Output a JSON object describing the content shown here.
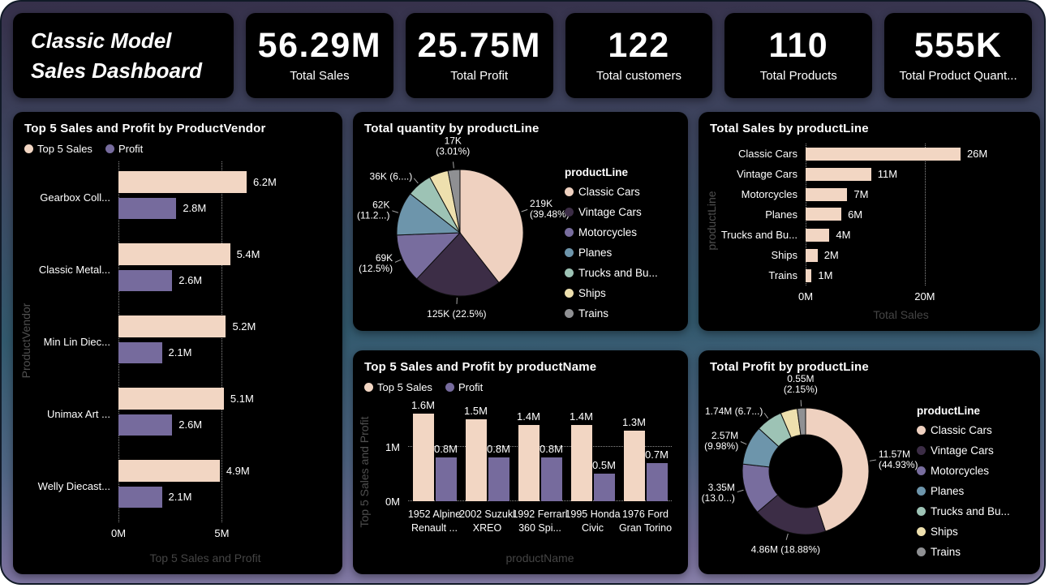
{
  "title_card": {
    "line1": "Classic Model",
    "line2": "Sales Dashboard"
  },
  "kpis": [
    {
      "value": "56.29M",
      "label": "Total Sales"
    },
    {
      "value": "25.75M",
      "label": "Total Profit"
    },
    {
      "value": "122",
      "label": "Total customers"
    },
    {
      "value": "110",
      "label": "Total Products"
    },
    {
      "value": "555K",
      "label": "Total Product Quant..."
    }
  ],
  "palette": {
    "Classic Cars": "#efd1c0",
    "Vintage Cars": "#3c2d46",
    "Motorcycles": "#786d9e",
    "Planes": "#6d95ab",
    "Trucks and Bu...": "#9dc3b5",
    "Ships": "#eee0ae",
    "Trains": "#8f9093",
    "sales": "#f2d6c3",
    "profit": "#766b9d"
  },
  "chart_data": [
    {
      "id": "vendor",
      "type": "bar",
      "orientation": "horizontal",
      "title": "Top 5 Sales and Profit by ProductVendor",
      "xlabel": "Top 5 Sales and Profit",
      "ylabel": "ProductVendor",
      "categories": [
        "Gearbox Coll...",
        "Classic Metal...",
        "Min Lin Diec...",
        "Unimax Art ...",
        "Welly Diecast..."
      ],
      "series": [
        {
          "name": "Top 5 Sales",
          "color_key": "sales",
          "values": [
            6.2,
            5.4,
            5.2,
            5.1,
            4.9
          ],
          "labels": [
            "6.2M",
            "5.4M",
            "5.2M",
            "5.1M",
            "4.9M"
          ]
        },
        {
          "name": "Profit",
          "color_key": "profit",
          "values": [
            2.8,
            2.6,
            2.1,
            2.6,
            2.1
          ],
          "labels": [
            "2.8M",
            "2.6M",
            "2.1M",
            "2.6M",
            "2.1M"
          ]
        }
      ],
      "x_ticks": [
        {
          "v": 0,
          "label": "0M"
        },
        {
          "v": 5,
          "label": "5M"
        }
      ],
      "xmax": 8.4,
      "grid": "dotted-vertical",
      "legend_position": "top"
    },
    {
      "id": "quantity",
      "type": "pie",
      "title": "Total quantity by productLine",
      "legend_title": "productLine",
      "legend_position": "right",
      "total": "555K",
      "slices": [
        {
          "name": "Classic Cars",
          "value": 219,
          "label": "219K\n(39.48%)"
        },
        {
          "name": "Vintage Cars",
          "value": 125,
          "label": "125K (22.5%)"
        },
        {
          "name": "Motorcycles",
          "value": 69,
          "label": "69K\n(12.5%)"
        },
        {
          "name": "Planes",
          "value": 62,
          "label": "62K\n(11.2...)"
        },
        {
          "name": "Trucks and Bu...",
          "value": 36,
          "label": "36K (6....)"
        },
        {
          "name": "Ships",
          "value": 27,
          "label": ""
        },
        {
          "name": "Trains",
          "value": 17,
          "label": "17K\n(3.01%)"
        }
      ]
    },
    {
      "id": "product",
      "type": "bar",
      "orientation": "vertical",
      "title": "Top 5 Sales and Profit by productName",
      "xlabel": "productName",
      "ylabel": "Top 5 Sales and Profit",
      "categories": [
        "1952 Alpine Renault ...",
        "2002 Suzuki XREO",
        "1992 Ferrari 360 Spi...",
        "1995 Honda Civic",
        "1976 Ford Gran Torino"
      ],
      "series": [
        {
          "name": "Top 5 Sales",
          "color_key": "sales",
          "values": [
            1.6,
            1.5,
            1.4,
            1.4,
            1.3
          ],
          "labels": [
            "1.6M",
            "1.5M",
            "1.4M",
            "1.4M",
            "1.3M"
          ]
        },
        {
          "name": "Profit",
          "color_key": "profit",
          "values": [
            0.8,
            0.8,
            0.8,
            0.5,
            0.7
          ],
          "labels": [
            "0.8M",
            "0.8M",
            "0.8M",
            "0.5M",
            "0.7M"
          ]
        }
      ],
      "y_ticks": [
        {
          "v": 0,
          "label": "0M"
        },
        {
          "v": 1,
          "label": "1M"
        }
      ],
      "ymax": 1.8,
      "grid": "dotted-horizontal",
      "legend_position": "top"
    },
    {
      "id": "sales",
      "type": "bar",
      "orientation": "horizontal",
      "title": "Total Sales by productLine",
      "xlabel": "Total Sales",
      "ylabel": "productLine",
      "categories": [
        "Classic Cars",
        "Vintage Cars",
        "Motorcycles",
        "Planes",
        "Trucks and Bu...",
        "Ships",
        "Trains"
      ],
      "series": [
        {
          "name": "Total Sales",
          "color_key": "sales",
          "values": [
            26,
            11,
            7,
            6,
            4,
            2,
            1
          ],
          "labels": [
            "26M",
            "11M",
            "7M",
            "6M",
            "4M",
            "2M",
            "1M"
          ]
        }
      ],
      "x_ticks": [
        {
          "v": 0,
          "label": "0M"
        },
        {
          "v": 20,
          "label": "20M"
        }
      ],
      "xmax": 32,
      "grid": "dotted-vertical"
    },
    {
      "id": "profit",
      "type": "donut",
      "title": "Total Profit by productLine",
      "legend_title": "productLine",
      "legend_position": "right",
      "total": "25.75M",
      "slices": [
        {
          "name": "Classic Cars",
          "value": 11.57,
          "label": "11.57M\n(44.93%)"
        },
        {
          "name": "Vintage Cars",
          "value": 4.86,
          "label": "4.86M (18.88%)"
        },
        {
          "name": "Motorcycles",
          "value": 3.35,
          "label": "3.35M\n(13.0...)"
        },
        {
          "name": "Planes",
          "value": 2.57,
          "label": "2.57M\n(9.98%)"
        },
        {
          "name": "Trucks and Bu...",
          "value": 1.74,
          "label": "1.74M (6.7...)"
        },
        {
          "name": "Ships",
          "value": 1.11,
          "label": ""
        },
        {
          "name": "Trains",
          "value": 0.55,
          "label": "0.55M\n(2.15%)"
        }
      ]
    }
  ]
}
